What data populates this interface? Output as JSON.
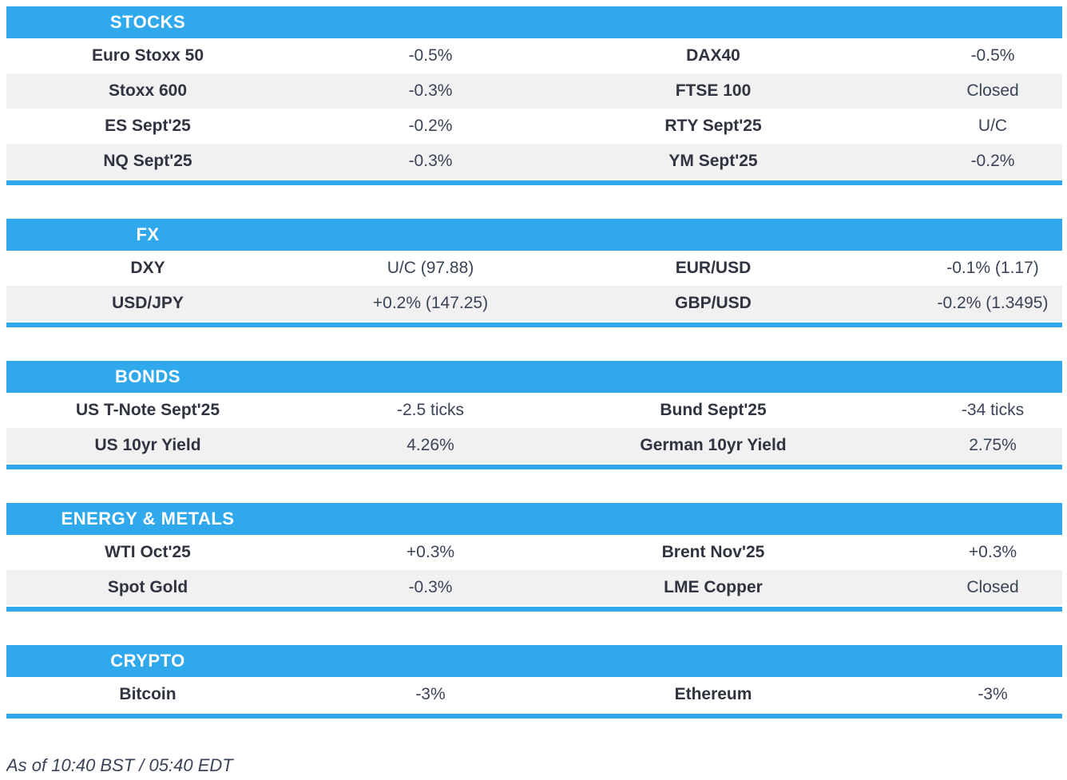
{
  "colors": {
    "accent_blue": "#2FA9EC",
    "stripe_gray": "#F1F1F1",
    "label_text": "#2F3440",
    "value_text": "#3A4357"
  },
  "sections": [
    {
      "title": "STOCKS",
      "rows": [
        {
          "l_label": "Euro Stoxx 50",
          "l_value": "-0.5%",
          "r_label": "DAX40",
          "r_value": "-0.5%"
        },
        {
          "l_label": "Stoxx 600",
          "l_value": "-0.3%",
          "r_label": "FTSE 100",
          "r_value": "Closed"
        },
        {
          "l_label": "ES Sept'25",
          "l_value": "-0.2%",
          "r_label": "RTY Sept'25",
          "r_value": "U/C"
        },
        {
          "l_label": "NQ Sept'25",
          "l_value": "-0.3%",
          "r_label": "YM Sept'25",
          "r_value": "-0.2%"
        }
      ]
    },
    {
      "title": "FX",
      "rows": [
        {
          "l_label": "DXY",
          "l_value": "U/C (97.88)",
          "r_label": "EUR/USD",
          "r_value": "-0.1% (1.17)"
        },
        {
          "l_label": "USD/JPY",
          "l_value": "+0.2% (147.25)",
          "r_label": "GBP/USD",
          "r_value": "-0.2% (1.3495)"
        }
      ]
    },
    {
      "title": "BONDS",
      "rows": [
        {
          "l_label": "US T-Note Sept'25",
          "l_value": "-2.5 ticks",
          "r_label": "Bund Sept'25",
          "r_value": "-34 ticks"
        },
        {
          "l_label": "US 10yr Yield",
          "l_value": "4.26%",
          "r_label": "German 10yr Yield",
          "r_value": "2.75%"
        }
      ]
    },
    {
      "title": "ENERGY & METALS",
      "rows": [
        {
          "l_label": "WTI Oct'25",
          "l_value": "+0.3%",
          "r_label": "Brent Nov'25",
          "r_value": "+0.3%"
        },
        {
          "l_label": "Spot Gold",
          "l_value": "-0.3%",
          "r_label": "LME Copper",
          "r_value": "Closed"
        }
      ]
    },
    {
      "title": "CRYPTO",
      "rows": [
        {
          "l_label": "Bitcoin",
          "l_value": "-3%",
          "r_label": "Ethereum",
          "r_value": "-3%"
        }
      ]
    }
  ],
  "footer": {
    "as_of": "As of 10:40 BST / 05:40 EDT"
  }
}
